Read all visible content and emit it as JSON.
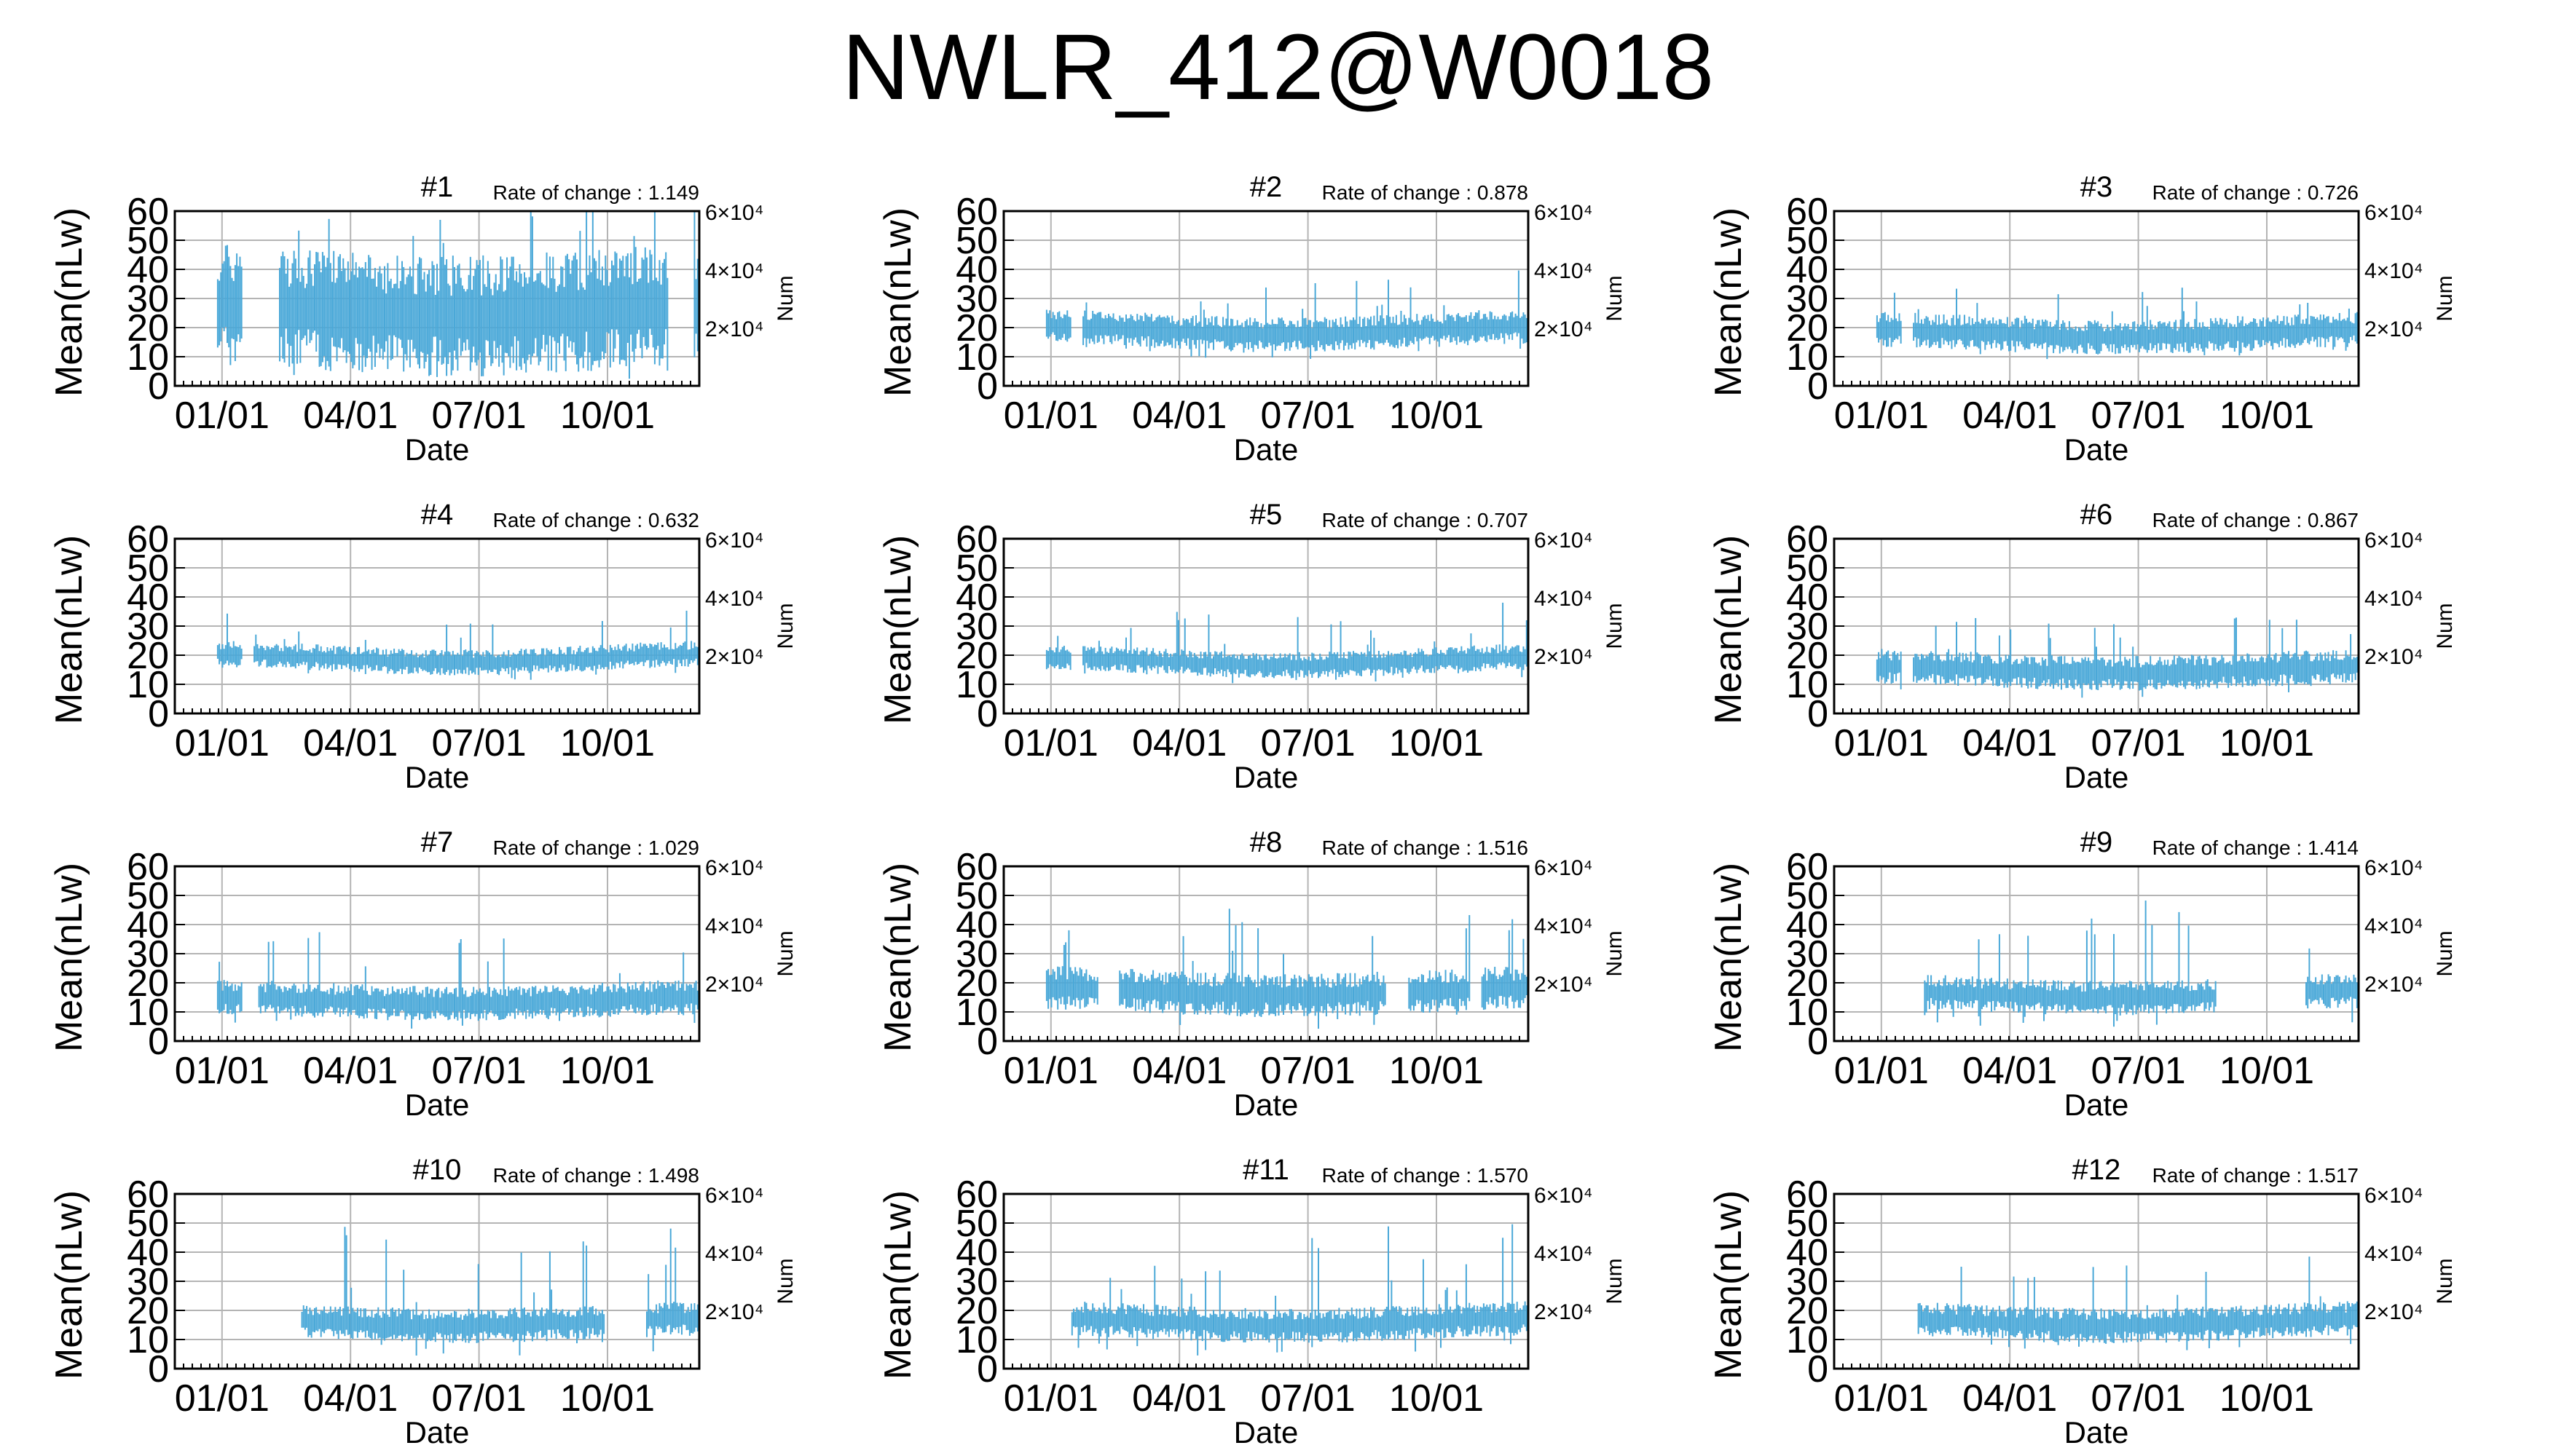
{
  "title": "NWLR_412@W0018",
  "colors": {
    "data": "#4aa8d8",
    "grid": "#b4b4b4",
    "axis": "#000000"
  },
  "chart_data": [
    {
      "type": "line",
      "title": "#1",
      "rate_label": "Rate of change : 1.149",
      "xlabel": "Date",
      "ylabel": "Mean(nLw)",
      "y2label": "Num",
      "x_ticks": [
        "01/01",
        "04/01",
        "07/01",
        "10/01"
      ],
      "y_ticks": [
        0,
        10,
        20,
        30,
        40,
        50,
        60
      ],
      "ylim": [
        0,
        60
      ],
      "y2_ticks": [
        "2×10⁴",
        "4×10⁴",
        "6×10⁴"
      ],
      "grid": true,
      "level": 26,
      "spread": 14,
      "spike": 10,
      "gaps": [
        [
          0,
          0.08
        ],
        [
          0.13,
          0.2
        ],
        [
          0.94,
          0.99
        ]
      ]
    },
    {
      "type": "line",
      "title": "#2",
      "rate_label": "Rate of change : 0.878",
      "xlabel": "Date",
      "ylabel": "Mean(nLw)",
      "y2label": "Num",
      "x_ticks": [
        "01/01",
        "04/01",
        "07/01",
        "10/01"
      ],
      "y_ticks": [
        0,
        10,
        20,
        30,
        40,
        50,
        60
      ],
      "ylim": [
        0,
        60
      ],
      "y2_ticks": [
        "2×10⁴",
        "4×10⁴",
        "6×10⁴"
      ],
      "grid": true,
      "level": 19,
      "spread": 4,
      "spike": 5,
      "gaps": [
        [
          0,
          0.08
        ],
        [
          0.13,
          0.15
        ]
      ]
    },
    {
      "type": "line",
      "title": "#3",
      "rate_label": "Rate of change : 0.726",
      "xlabel": "Date",
      "ylabel": "Mean(nLw)",
      "y2label": "Num",
      "x_ticks": [
        "01/01",
        "04/01",
        "07/01",
        "10/01"
      ],
      "y_ticks": [
        0,
        10,
        20,
        30,
        40,
        50,
        60
      ],
      "ylim": [
        0,
        60
      ],
      "y2_ticks": [
        "2×10⁴",
        "4×10⁴",
        "6×10⁴"
      ],
      "grid": true,
      "level": 18,
      "spread": 4,
      "spike": 4,
      "gaps": [
        [
          0,
          0.08
        ],
        [
          0.13,
          0.15
        ]
      ]
    },
    {
      "type": "line",
      "title": "#4",
      "rate_label": "Rate of change : 0.632",
      "xlabel": "Date",
      "ylabel": "Mean(nLw)",
      "y2label": "Num",
      "x_ticks": [
        "01/01",
        "04/01",
        "07/01",
        "10/01"
      ],
      "y_ticks": [
        0,
        10,
        20,
        30,
        40,
        50,
        60
      ],
      "ylim": [
        0,
        60
      ],
      "y2_ticks": [
        "2×10⁴",
        "4×10⁴",
        "6×10⁴"
      ],
      "grid": true,
      "level": 19,
      "spread": 3,
      "spike": 4,
      "gaps": [
        [
          0,
          0.08
        ],
        [
          0.13,
          0.15
        ]
      ]
    },
    {
      "type": "line",
      "title": "#5",
      "rate_label": "Rate of change : 0.707",
      "xlabel": "Date",
      "ylabel": "Mean(nLw)",
      "y2label": "Num",
      "x_ticks": [
        "01/01",
        "04/01",
        "07/01",
        "10/01"
      ],
      "y_ticks": [
        0,
        10,
        20,
        30,
        40,
        50,
        60
      ],
      "ylim": [
        0,
        60
      ],
      "y2_ticks": [
        "2×10⁴",
        "4×10⁴",
        "6×10⁴"
      ],
      "grid": true,
      "level": 18,
      "spread": 3,
      "spike": 5,
      "gaps": [
        [
          0,
          0.08
        ],
        [
          0.13,
          0.15
        ]
      ]
    },
    {
      "type": "line",
      "title": "#6",
      "rate_label": "Rate of change : 0.867",
      "xlabel": "Date",
      "ylabel": "Mean(nLw)",
      "y2label": "Num",
      "x_ticks": [
        "01/01",
        "04/01",
        "07/01",
        "10/01"
      ],
      "y_ticks": [
        0,
        10,
        20,
        30,
        40,
        50,
        60
      ],
      "ylim": [
        0,
        60
      ],
      "y2_ticks": [
        "2×10⁴",
        "4×10⁴",
        "6×10⁴"
      ],
      "grid": true,
      "level": 15,
      "spread": 4,
      "spike": 5,
      "gaps": [
        [
          0,
          0.08
        ],
        [
          0.13,
          0.15
        ]
      ]
    },
    {
      "type": "line",
      "title": "#7",
      "rate_label": "Rate of change : 1.029",
      "xlabel": "Date",
      "ylabel": "Mean(nLw)",
      "y2label": "Num",
      "x_ticks": [
        "01/01",
        "04/01",
        "07/01",
        "10/01"
      ],
      "y_ticks": [
        0,
        10,
        20,
        30,
        40,
        50,
        60
      ],
      "ylim": [
        0,
        60
      ],
      "y2_ticks": [
        "2×10⁴",
        "4×10⁴",
        "6×10⁴"
      ],
      "grid": true,
      "level": 14,
      "spread": 4,
      "spike": 6,
      "gaps": [
        [
          0,
          0.08
        ],
        [
          0.13,
          0.16
        ]
      ]
    },
    {
      "type": "line",
      "title": "#8",
      "rate_label": "Rate of change : 1.516",
      "xlabel": "Date",
      "ylabel": "Mean(nLw)",
      "y2label": "Num",
      "x_ticks": [
        "01/01",
        "04/01",
        "07/01",
        "10/01"
      ],
      "y_ticks": [
        0,
        10,
        20,
        30,
        40,
        50,
        60
      ],
      "ylim": [
        0,
        60
      ],
      "y2_ticks": [
        "2×10⁴",
        "4×10⁴",
        "6×10⁴"
      ],
      "grid": true,
      "level": 17,
      "spread": 5,
      "spike": 8,
      "gaps": [
        [
          0,
          0.08
        ],
        [
          0.18,
          0.22
        ],
        [
          0.73,
          0.77
        ],
        [
          0.89,
          0.91
        ]
      ]
    },
    {
      "type": "line",
      "title": "#9",
      "rate_label": "Rate of change : 1.414",
      "xlabel": "Date",
      "ylabel": "Mean(nLw)",
      "y2label": "Num",
      "x_ticks": [
        "01/01",
        "04/01",
        "07/01",
        "10/01"
      ],
      "y_ticks": [
        0,
        10,
        20,
        30,
        40,
        50,
        60
      ],
      "ylim": [
        0,
        60
      ],
      "y2_ticks": [
        "2×10⁴",
        "4×10⁴",
        "6×10⁴"
      ],
      "grid": true,
      "level": 16,
      "spread": 4,
      "spike": 10,
      "gaps": [
        [
          0,
          0.17
        ],
        [
          0.73,
          0.9
        ]
      ]
    },
    {
      "type": "line",
      "title": "#10",
      "rate_label": "Rate of change : 1.498",
      "xlabel": "Date",
      "ylabel": "Mean(nLw)",
      "y2label": "Num",
      "x_ticks": [
        "01/01",
        "04/01",
        "07/01",
        "10/01"
      ],
      "y_ticks": [
        0,
        10,
        20,
        30,
        40,
        50,
        60
      ],
      "ylim": [
        0,
        60
      ],
      "y2_ticks": [
        "2×10⁴",
        "4×10⁴",
        "6×10⁴"
      ],
      "grid": true,
      "level": 16,
      "spread": 4,
      "spike": 10,
      "gaps": [
        [
          0,
          0.24
        ],
        [
          0.82,
          0.9
        ]
      ]
    },
    {
      "type": "line",
      "title": "#11",
      "rate_label": "Rate of change : 1.570",
      "xlabel": "Date",
      "ylabel": "Mean(nLw)",
      "y2label": "Num",
      "x_ticks": [
        "01/01",
        "04/01",
        "07/01",
        "10/01"
      ],
      "y_ticks": [
        0,
        10,
        20,
        30,
        40,
        50,
        60
      ],
      "ylim": [
        0,
        60
      ],
      "y2_ticks": [
        "2×10⁴",
        "4×10⁴",
        "6×10⁴"
      ],
      "grid": true,
      "level": 16,
      "spread": 4,
      "spike": 10,
      "gaps": [
        [
          0,
          0.13
        ]
      ]
    },
    {
      "type": "line",
      "title": "#12",
      "rate_label": "Rate of change : 1.517",
      "xlabel": "Date",
      "ylabel": "Mean(nLw)",
      "y2label": "Num",
      "x_ticks": [
        "01/01",
        "04/01",
        "07/01",
        "10/01"
      ],
      "y_ticks": [
        0,
        10,
        20,
        30,
        40,
        50,
        60
      ],
      "ylim": [
        0,
        60
      ],
      "y2_ticks": [
        "2×10⁴",
        "4×10⁴",
        "6×10⁴"
      ],
      "grid": true,
      "level": 16,
      "spread": 4,
      "spike": 6,
      "gaps": [
        [
          0,
          0.16
        ]
      ]
    }
  ]
}
